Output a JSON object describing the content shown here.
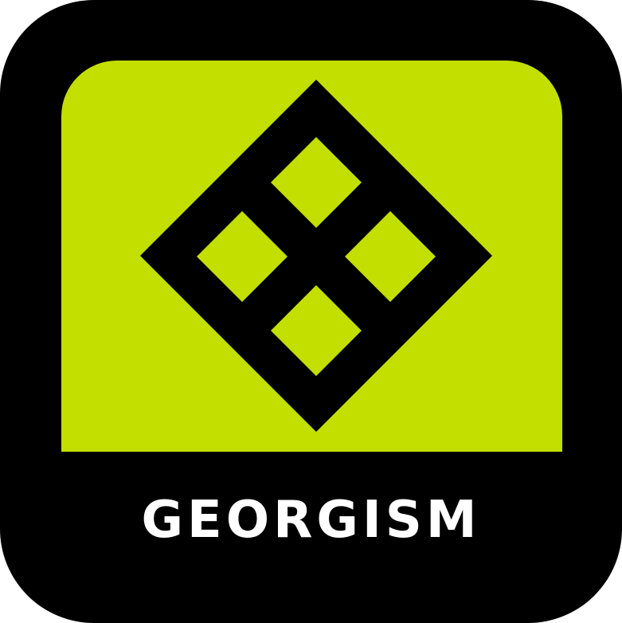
{
  "badge": {
    "title": "GEORGISM",
    "icon": "diamond-grid-icon",
    "colors": {
      "frame": "#000000",
      "panel": "#c2df00",
      "text": "#ffffff",
      "outer_background": "#ffffff"
    }
  }
}
